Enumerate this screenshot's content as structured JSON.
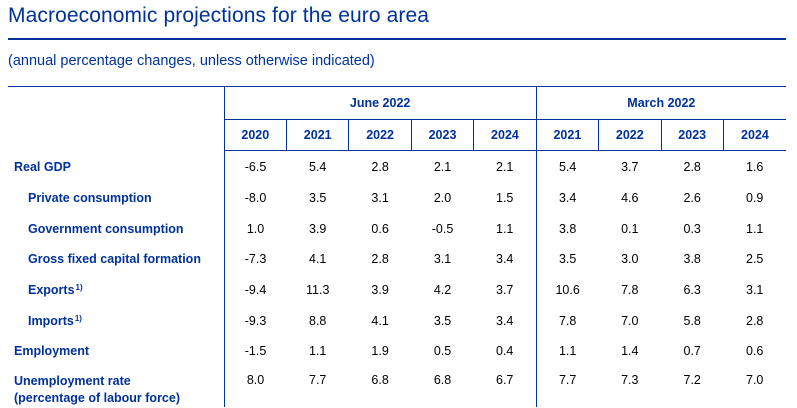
{
  "title": "Macroeconomic projections for the euro area",
  "subtitle": "(annual percentage changes, unless otherwise indicated)",
  "groups": {
    "june": "June 2022",
    "march": "March 2022"
  },
  "years": {
    "june": [
      "2020",
      "2021",
      "2022",
      "2023",
      "2024"
    ],
    "march": [
      "2021",
      "2022",
      "2023",
      "2024"
    ]
  },
  "rows": [
    {
      "label": "Real GDP",
      "sup": "",
      "june": [
        "-6.5",
        "5.4",
        "2.8",
        "2.1",
        "2.1"
      ],
      "march": [
        "5.4",
        "3.7",
        "2.8",
        "1.6"
      ]
    },
    {
      "label": "Private consumption",
      "sup": "",
      "june": [
        "-8.0",
        "3.5",
        "3.1",
        "2.0",
        "1.5"
      ],
      "march": [
        "3.4",
        "4.6",
        "2.6",
        "0.9"
      ]
    },
    {
      "label": "Government consumption",
      "sup": "",
      "june": [
        "1.0",
        "3.9",
        "0.6",
        "-0.5",
        "1.1"
      ],
      "march": [
        "3.8",
        "0.1",
        "0.3",
        "1.1"
      ]
    },
    {
      "label": "Gross fixed capital formation",
      "sup": "",
      "june": [
        "-7.3",
        "4.1",
        "2.8",
        "3.1",
        "3.4"
      ],
      "march": [
        "3.5",
        "3.0",
        "3.8",
        "2.5"
      ]
    },
    {
      "label": "Exports",
      "sup": "1)",
      "june": [
        "-9.4",
        "11.3",
        "3.9",
        "4.2",
        "3.7"
      ],
      "march": [
        "10.6",
        "7.8",
        "6.3",
        "3.1"
      ]
    },
    {
      "label": "Imports",
      "sup": "1)",
      "june": [
        "-9.3",
        "8.8",
        "4.1",
        "3.5",
        "3.4"
      ],
      "march": [
        "7.8",
        "7.0",
        "5.8",
        "2.8"
      ]
    },
    {
      "label": "Employment",
      "sup": "",
      "june": [
        "-1.5",
        "1.1",
        "1.9",
        "0.5",
        "0.4"
      ],
      "march": [
        "1.1",
        "1.4",
        "0.7",
        "0.6"
      ]
    },
    {
      "label": "Unemployment rate",
      "label2": "(percentage of labour force)",
      "sup": "",
      "june": [
        "8.0",
        "7.7",
        "6.8",
        "6.8",
        "6.7"
      ],
      "march": [
        "7.7",
        "7.3",
        "7.2",
        "7.0"
      ]
    }
  ]
}
